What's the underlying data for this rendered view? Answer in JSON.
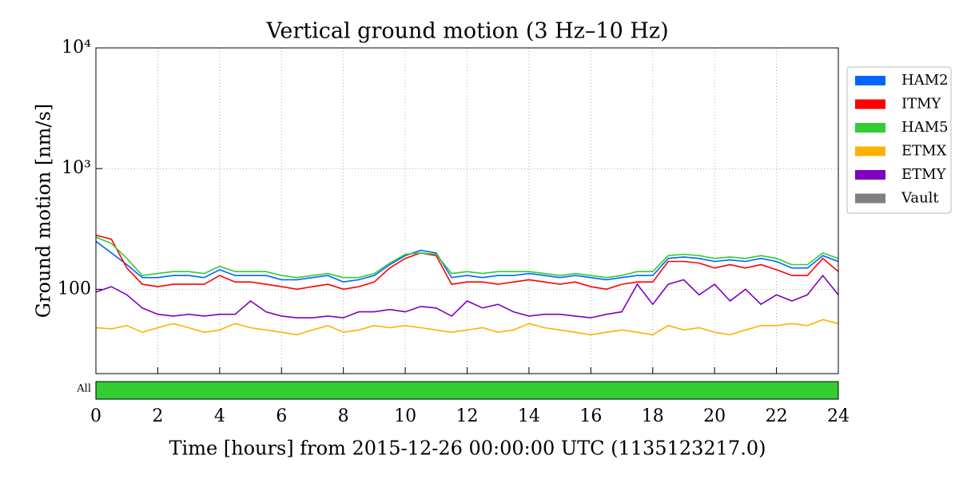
{
  "chart_data": {
    "type": "line",
    "title": "Vertical ground motion (3 Hz–10 Hz)",
    "xlabel": "Time [hours] from 2015-12-26 00:00:00 UTC (1135123217.0)",
    "ylabel": "Ground motion [nm/s]",
    "yscale": "log",
    "grid": true,
    "legend": "outside right",
    "xlim": [
      0,
      24
    ],
    "xticks": [
      0,
      2,
      4,
      6,
      8,
      10,
      12,
      14,
      16,
      18,
      20,
      22,
      24
    ],
    "ylim": [
      20,
      10000
    ],
    "yticks": [
      100,
      {
        "value": 1000,
        "label": "10³"
      },
      {
        "value": 10000,
        "label": "10⁴"
      }
    ],
    "state_bar": {
      "label": "All",
      "color": "#33cc33"
    },
    "x": [
      0,
      0.5,
      1,
      1.5,
      2,
      2.5,
      3,
      3.5,
      4,
      4.5,
      5,
      5.5,
      6,
      6.5,
      7,
      7.5,
      8,
      8.5,
      9,
      9.5,
      10,
      10.5,
      11,
      11.5,
      12,
      12.5,
      13,
      13.5,
      14,
      14.5,
      15,
      15.5,
      16,
      16.5,
      17,
      17.5,
      18,
      18.5,
      19,
      19.5,
      20,
      20.5,
      21,
      21.5,
      22,
      22.5,
      23,
      23.5,
      24
    ],
    "series": [
      {
        "name": "HAM2",
        "color": "#0066ff",
        "values": [
          250,
          200,
          160,
          125,
          125,
          130,
          130,
          125,
          145,
          130,
          130,
          130,
          120,
          120,
          125,
          130,
          115,
          120,
          130,
          160,
          190,
          210,
          200,
          125,
          130,
          125,
          130,
          130,
          135,
          130,
          125,
          130,
          125,
          120,
          125,
          130,
          130,
          180,
          185,
          180,
          170,
          175,
          170,
          180,
          170,
          150,
          150,
          190,
          170
        ]
      },
      {
        "name": "ITMY",
        "color": "#ff0000",
        "values": [
          280,
          260,
          150,
          110,
          105,
          110,
          110,
          110,
          130,
          115,
          115,
          110,
          105,
          100,
          105,
          110,
          100,
          105,
          115,
          150,
          180,
          200,
          190,
          110,
          115,
          115,
          110,
          115,
          120,
          115,
          110,
          115,
          105,
          100,
          110,
          115,
          115,
          170,
          170,
          165,
          150,
          160,
          150,
          160,
          145,
          130,
          130,
          180,
          140
        ]
      },
      {
        "name": "HAM5",
        "color": "#33cc33",
        "values": [
          270,
          240,
          180,
          130,
          135,
          140,
          140,
          135,
          155,
          140,
          140,
          140,
          130,
          125,
          130,
          135,
          125,
          125,
          135,
          165,
          195,
          200,
          195,
          135,
          140,
          135,
          140,
          140,
          140,
          135,
          130,
          135,
          130,
          125,
          130,
          140,
          140,
          190,
          195,
          190,
          180,
          185,
          180,
          190,
          180,
          160,
          160,
          200,
          180
        ]
      },
      {
        "name": "ETMX",
        "color": "#ffb200",
        "values": [
          48,
          47,
          50,
          44,
          48,
          52,
          48,
          44,
          46,
          52,
          48,
          46,
          44,
          42,
          46,
          50,
          44,
          46,
          50,
          48,
          50,
          48,
          46,
          44,
          46,
          48,
          44,
          46,
          52,
          48,
          46,
          44,
          42,
          44,
          46,
          44,
          42,
          50,
          46,
          48,
          44,
          42,
          46,
          50,
          50,
          52,
          50,
          56,
          52
        ]
      },
      {
        "name": "ETMY",
        "color": "#8000c0",
        "values": [
          95,
          105,
          90,
          70,
          62,
          60,
          62,
          60,
          62,
          62,
          80,
          65,
          60,
          58,
          58,
          60,
          58,
          65,
          65,
          68,
          65,
          72,
          70,
          60,
          80,
          70,
          75,
          65,
          60,
          62,
          62,
          60,
          58,
          62,
          65,
          110,
          75,
          110,
          120,
          90,
          110,
          80,
          100,
          75,
          90,
          80,
          90,
          130,
          90
        ]
      },
      {
        "name": "Vault",
        "color": "#808080",
        "values": [
          null,
          null,
          null,
          null,
          null,
          null,
          null,
          null,
          null,
          null,
          null,
          null,
          null,
          null,
          null,
          null,
          null,
          null,
          null,
          null,
          null,
          null,
          null,
          null,
          null,
          null,
          null,
          null,
          null,
          null,
          null,
          null,
          null,
          null,
          null,
          null,
          null,
          null,
          null,
          null,
          null,
          null,
          null,
          null,
          null,
          null,
          null,
          null,
          null
        ]
      }
    ]
  }
}
